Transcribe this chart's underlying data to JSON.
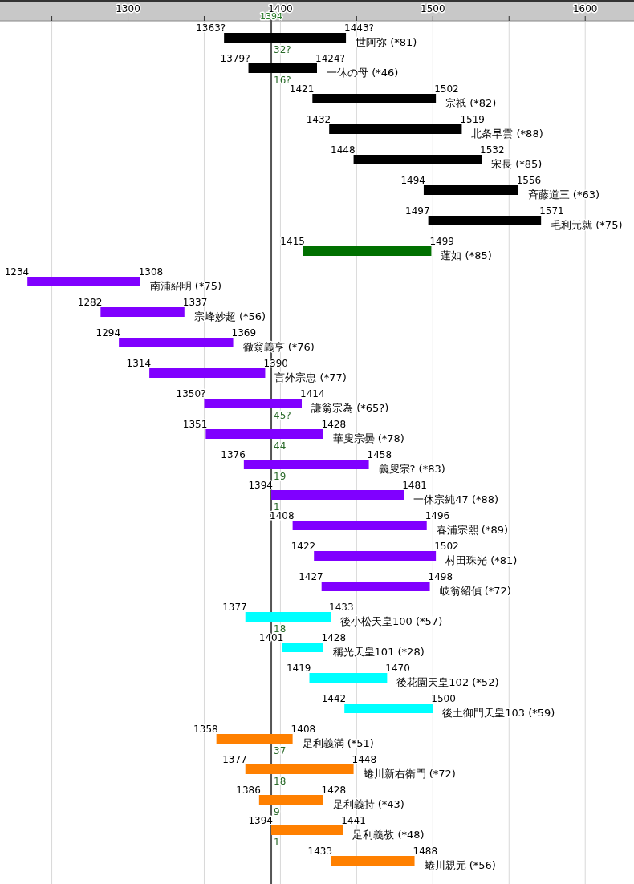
{
  "chart_data": {
    "type": "bar",
    "orientation": "horizontal",
    "categories": [
      "世阿弥 (*81)",
      "一休の母 (*46)",
      "宗祇 (*82)",
      "北条早雲 (*88)",
      "宋長 (*85)",
      "斉藤道三 (*63)",
      "毛利元就 (*75)",
      "蓮如 (*85)",
      "南浦紹明 (*75)",
      "宗峰妙超 (*56)",
      "徹翁義亨 (*76)",
      "言外宗忠 (*77)",
      "謙翁宗為 (*65?)",
      "華叟宗曇 (*78)",
      "義叟宗? (*83)",
      "一休宗純47 (*88)",
      "春浦宗熙 (*89)",
      "村田珠光 (*81)",
      "岐翁紹偵 (*72)",
      "後小松天皇100 (*57)",
      "稱光天皇101 (*28)",
      "後花園天皇102 (*52)",
      "後土御門天皇103 (*59)",
      "足利義満 (*51)",
      "蜷川新右衛門 (*72)",
      "足利義持 (*43)",
      "足利義教 (*48)",
      "蜷川親元 (*56)"
    ],
    "base": [
      1363,
      1379,
      1421,
      1432,
      1448,
      1494,
      1497,
      1415,
      1234,
      1282,
      1294,
      1314,
      1350,
      1351,
      1376,
      1394,
      1408,
      1422,
      1427,
      1377,
      1401,
      1419,
      1442,
      1358,
      1377,
      1386,
      1394,
      1433
    ],
    "values": [
      80,
      45,
      81,
      87,
      84,
      62,
      74,
      84,
      74,
      55,
      75,
      76,
      64,
      77,
      82,
      87,
      88,
      80,
      71,
      56,
      27,
      51,
      58,
      50,
      71,
      42,
      47,
      55
    ],
    "colors": [
      "#000000",
      "#000000",
      "#000000",
      "#000000",
      "#000000",
      "#000000",
      "#000000",
      "#007000",
      "#8000ff",
      "#8000ff",
      "#8000ff",
      "#8000ff",
      "#8000ff",
      "#8000ff",
      "#8000ff",
      "#8000ff",
      "#8000ff",
      "#8000ff",
      "#8000ff",
      "#00ffff",
      "#00ffff",
      "#00ffff",
      "#00ffff",
      "#ff8000",
      "#ff8000",
      "#ff8000",
      "#ff8000",
      "#ff8000"
    ],
    "xlim": [
      1216,
      1632
    ],
    "xticks": [
      {
        "value": 1250,
        "label": null
      },
      1300,
      {
        "value": 1350,
        "label": null
      },
      1400,
      {
        "value": 1450,
        "label": null
      },
      1500,
      {
        "value": 1550,
        "label": null
      },
      1600
    ],
    "grid": "x",
    "ref_lines": [
      {
        "axis": "x",
        "value": 1394,
        "label": "1394",
        "color": "#555555"
      }
    ],
    "annotations": [
      {
        "text": "1363?",
        "x": 1363,
        "y": "世阿弥 (*81)"
      },
      {
        "text": "1443?",
        "x": 1443,
        "y": "世阿弥 (*81)"
      },
      {
        "text": "32?",
        "x": 1394,
        "y": "世阿弥 (*81)"
      },
      {
        "text": "1379?",
        "x": 1379,
        "y": "一休の母 (*46)"
      },
      {
        "text": "1424?",
        "x": 1424,
        "y": "一休の母 (*46)"
      },
      {
        "text": "16?",
        "x": 1394,
        "y": "一休の母 (*46)"
      },
      {
        "text": "1421",
        "x": 1421,
        "y": "宗祇 (*82)"
      },
      {
        "text": "1502",
        "x": 1502,
        "y": "宗祇 (*82)"
      },
      {
        "text": "1432",
        "x": 1432,
        "y": "北条早雲 (*88)"
      },
      {
        "text": "1519",
        "x": 1519,
        "y": "北条早雲 (*88)"
      },
      {
        "text": "1448",
        "x": 1448,
        "y": "宋長 (*85)"
      },
      {
        "text": "1532",
        "x": 1532,
        "y": "宋長 (*85)"
      },
      {
        "text": "1494",
        "x": 1494,
        "y": "斉藤道三 (*63)"
      },
      {
        "text": "1556",
        "x": 1556,
        "y": "斉藤道三 (*63)"
      },
      {
        "text": "1497",
        "x": 1497,
        "y": "毛利元就 (*75)"
      },
      {
        "text": "1571",
        "x": 1571,
        "y": "毛利元就 (*75)"
      },
      {
        "text": "1415",
        "x": 1415,
        "y": "蓮如 (*85)"
      },
      {
        "text": "1499",
        "x": 1499,
        "y": "蓮如 (*85)"
      },
      {
        "text": "1234",
        "x": 1234,
        "y": "南浦紹明 (*75)"
      },
      {
        "text": "1308",
        "x": 1308,
        "y": "南浦紹明 (*75)"
      },
      {
        "text": "1282",
        "x": 1282,
        "y": "宗峰妙超 (*56)"
      },
      {
        "text": "1337",
        "x": 1337,
        "y": "宗峰妙超 (*56)"
      },
      {
        "text": "1294",
        "x": 1294,
        "y": "徹翁義亨 (*76)"
      },
      {
        "text": "1369",
        "x": 1369,
        "y": "徹翁義亨 (*76)"
      },
      {
        "text": "1314",
        "x": 1314,
        "y": "言外宗忠 (*77)"
      },
      {
        "text": "1390",
        "x": 1390,
        "y": "言外宗忠 (*77)"
      },
      {
        "text": "1350?",
        "x": 1350,
        "y": "謙翁宗為 (*65?)"
      },
      {
        "text": "1414",
        "x": 1414,
        "y": "謙翁宗為 (*65?)"
      },
      {
        "text": "45?",
        "x": 1394,
        "y": "謙翁宗為 (*65?)"
      },
      {
        "text": "1351",
        "x": 1351,
        "y": "華叟宗曇 (*78)"
      },
      {
        "text": "1428",
        "x": 1428,
        "y": "華叟宗曇 (*78)"
      },
      {
        "text": "44",
        "x": 1394,
        "y": "華叟宗曇 (*78)"
      },
      {
        "text": "1376",
        "x": 1376,
        "y": "義叟宗? (*83)"
      },
      {
        "text": "1458",
        "x": 1458,
        "y": "義叟宗? (*83)"
      },
      {
        "text": "19",
        "x": 1394,
        "y": "義叟宗? (*83)"
      },
      {
        "text": "1394",
        "x": 1394,
        "y": "一休宗純47 (*88)"
      },
      {
        "text": "1481",
        "x": 1481,
        "y": "一休宗純47 (*88)"
      },
      {
        "text": "1",
        "x": 1394,
        "y": "一休宗純47 (*88)"
      },
      {
        "text": "1408",
        "x": 1408,
        "y": "春浦宗熙 (*89)"
      },
      {
        "text": "1496",
        "x": 1496,
        "y": "春浦宗熙 (*89)"
      },
      {
        "text": "1422",
        "x": 1422,
        "y": "村田珠光 (*81)"
      },
      {
        "text": "1502",
        "x": 1502,
        "y": "村田珠光 (*81)"
      },
      {
        "text": "1427",
        "x": 1427,
        "y": "岐翁紹偵 (*72)"
      },
      {
        "text": "1498",
        "x": 1498,
        "y": "岐翁紹偵 (*72)"
      },
      {
        "text": "1377",
        "x": 1377,
        "y": "後小松天皇100 (*57)"
      },
      {
        "text": "1433",
        "x": 1433,
        "y": "後小松天皇100 (*57)"
      },
      {
        "text": "18",
        "x": 1394,
        "y": "後小松天皇100 (*57)"
      },
      {
        "text": "1401",
        "x": 1401,
        "y": "稱光天皇101 (*28)"
      },
      {
        "text": "1428",
        "x": 1428,
        "y": "稱光天皇101 (*28)"
      },
      {
        "text": "1419",
        "x": 1419,
        "y": "後花園天皇102 (*52)"
      },
      {
        "text": "1470",
        "x": 1470,
        "y": "後花園天皇102 (*52)"
      },
      {
        "text": "1442",
        "x": 1442,
        "y": "後土御門天皇103 (*59)"
      },
      {
        "text": "1500",
        "x": 1500,
        "y": "後土御門天皇103 (*59)"
      },
      {
        "text": "1358",
        "x": 1358,
        "y": "足利義満 (*51)"
      },
      {
        "text": "1408",
        "x": 1408,
        "y": "足利義満 (*51)"
      },
      {
        "text": "37",
        "x": 1394,
        "y": "足利義満 (*51)"
      },
      {
        "text": "1377",
        "x": 1377,
        "y": "蜷川新右衛門 (*72)"
      },
      {
        "text": "1448",
        "x": 1448,
        "y": "蜷川新右衛門 (*72)"
      },
      {
        "text": "18",
        "x": 1394,
        "y": "蜷川新右衛門 (*72)"
      },
      {
        "text": "1386",
        "x": 1386,
        "y": "足利義持 (*43)"
      },
      {
        "text": "1428",
        "x": 1428,
        "y": "足利義持 (*43)"
      },
      {
        "text": "9",
        "x": 1394,
        "y": "足利義持 (*43)"
      },
      {
        "text": "1394",
        "x": 1394,
        "y": "足利義教 (*48)"
      },
      {
        "text": "1441",
        "x": 1441,
        "y": "足利義教 (*48)"
      },
      {
        "text": "1",
        "x": 1394,
        "y": "足利義教 (*48)"
      },
      {
        "text": "1433",
        "x": 1433,
        "y": "蜷川親元 (*56)"
      },
      {
        "text": "1488",
        "x": 1488,
        "y": "蜷川親元 (*56)"
      }
    ]
  }
}
